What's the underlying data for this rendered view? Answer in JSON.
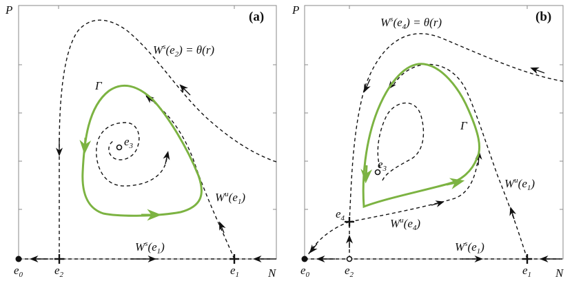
{
  "panel_a": {
    "tag": "(a)",
    "axis_y": "P",
    "axis_x": "N",
    "e0": {
      "base": "e",
      "sub": "0"
    },
    "e1": {
      "base": "e",
      "sub": "1"
    },
    "e2": {
      "base": "e",
      "sub": "2"
    },
    "e3": {
      "base": "e",
      "sub": "3"
    },
    "gamma": "Γ",
    "ws_e2": {
      "pre": "W",
      "sup": "s",
      "mid": "(e",
      "sub": "2",
      "post": ") = θ(r)"
    },
    "wu_e1": {
      "pre": "W",
      "sup": "u",
      "mid": "(e",
      "sub": "1",
      "post": ")"
    },
    "ws_e1": {
      "pre": "W",
      "sup": "s",
      "mid": "(e",
      "sub": "1",
      "post": ")"
    }
  },
  "panel_b": {
    "tag": "(b)",
    "axis_y": "P",
    "axis_x": "N",
    "e0": {
      "base": "e",
      "sub": "0"
    },
    "e1": {
      "base": "e",
      "sub": "1"
    },
    "e2": {
      "base": "e",
      "sub": "2"
    },
    "e3": {
      "base": "e",
      "sub": "3"
    },
    "e4": {
      "base": "e",
      "sub": "4"
    },
    "gamma": "Γ",
    "ws_e4": {
      "pre": "W",
      "sup": "s",
      "mid": "(e",
      "sub": "4",
      "post": ") = θ(r)"
    },
    "wu_e1": {
      "pre": "W",
      "sup": "u",
      "mid": "(e",
      "sub": "1",
      "post": ")"
    },
    "wu_e4": {
      "pre": "W",
      "sup": "u",
      "mid": "(e",
      "sub": "4",
      "post": ")"
    },
    "ws_e1": {
      "pre": "W",
      "sup": "s",
      "mid": "(e",
      "sub": "1",
      "post": ")"
    }
  },
  "colors": {
    "limit_cycle": "#7cb342",
    "manifold": "#111111",
    "frame": "#888888"
  }
}
